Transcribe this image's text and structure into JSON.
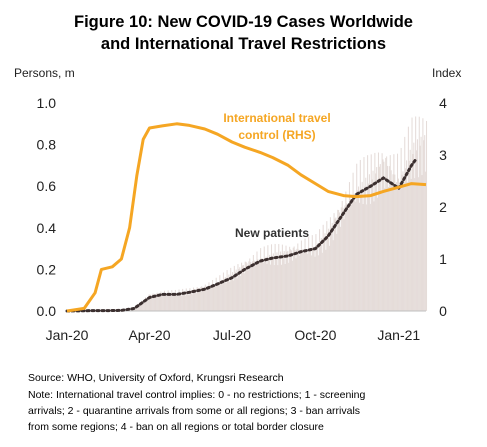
{
  "title_line1": "Figure 10: New COVID-19 Cases Worldwide",
  "title_line2": "and International Travel Restrictions",
  "source": "Source: WHO, University of Oxford, Krungsri Research",
  "note_lines": [
    "Note: International travel control implies: 0 - no restrictions; 1 - screening",
    "arrivals; 2 - quarantine arrivals from some or all regions; 3 - ban arrivals",
    "from some regions; 4 - ban on all regions or total border closure"
  ],
  "chart_data": {
    "type": "line",
    "ylabel": "Persons, m",
    "y2label": "Index",
    "ylim": [
      0,
      1.0
    ],
    "y2lim": [
      0,
      4
    ],
    "yticks": [
      "0.0",
      "0.2",
      "0.4",
      "0.6",
      "0.8",
      "1.0"
    ],
    "y2ticks": [
      "0",
      "1",
      "2",
      "3",
      "4"
    ],
    "xlim": [
      "2020-01-01",
      "2021-01-31"
    ],
    "xticks": [
      {
        "label": "Jan-20",
        "date": "2020-01-01"
      },
      {
        "label": "Apr-20",
        "date": "2020-04-01"
      },
      {
        "label": "Jul-20",
        "date": "2020-07-01"
      },
      {
        "label": "Oct-20",
        "date": "2020-10-01"
      },
      {
        "label": "Jan-21",
        "date": "2021-01-01"
      }
    ],
    "grid": false,
    "series": [
      {
        "name": "New patients",
        "axis": "left",
        "style": "daily bars",
        "color": "#e5dcd9",
        "points": [
          [
            "2020-01-01",
            0.0
          ],
          [
            "2020-02-01",
            0.002
          ],
          [
            "2020-02-15",
            0.003
          ],
          [
            "2020-03-01",
            0.003
          ],
          [
            "2020-03-15",
            0.015
          ],
          [
            "2020-04-01",
            0.075
          ],
          [
            "2020-04-15",
            0.085
          ],
          [
            "2020-05-01",
            0.085
          ],
          [
            "2020-05-15",
            0.095
          ],
          [
            "2020-06-01",
            0.115
          ],
          [
            "2020-06-15",
            0.14
          ],
          [
            "2020-07-01",
            0.18
          ],
          [
            "2020-07-15",
            0.22
          ],
          [
            "2020-08-01",
            0.26
          ],
          [
            "2020-08-15",
            0.27
          ],
          [
            "2020-09-01",
            0.28
          ],
          [
            "2020-09-15",
            0.3
          ],
          [
            "2020-10-01",
            0.31
          ],
          [
            "2020-10-15",
            0.38
          ],
          [
            "2020-11-01",
            0.5
          ],
          [
            "2020-11-15",
            0.6
          ],
          [
            "2020-12-01",
            0.64
          ],
          [
            "2020-12-15",
            0.7
          ],
          [
            "2021-01-01",
            0.65
          ],
          [
            "2021-01-15",
            0.78
          ],
          [
            "2021-01-31",
            0.82
          ]
        ]
      },
      {
        "name": "New patients",
        "axis": "left",
        "style": "dotted moving average",
        "color": "#3b2f2f",
        "points": [
          [
            "2020-01-01",
            0.0
          ],
          [
            "2020-02-01",
            0.002
          ],
          [
            "2020-02-15",
            0.002
          ],
          [
            "2020-03-01",
            0.003
          ],
          [
            "2020-03-15",
            0.012
          ],
          [
            "2020-04-01",
            0.065
          ],
          [
            "2020-04-15",
            0.08
          ],
          [
            "2020-05-01",
            0.08
          ],
          [
            "2020-05-15",
            0.09
          ],
          [
            "2020-06-01",
            0.105
          ],
          [
            "2020-06-15",
            0.13
          ],
          [
            "2020-07-01",
            0.16
          ],
          [
            "2020-07-15",
            0.2
          ],
          [
            "2020-08-01",
            0.24
          ],
          [
            "2020-08-15",
            0.255
          ],
          [
            "2020-09-01",
            0.265
          ],
          [
            "2020-09-15",
            0.285
          ],
          [
            "2020-10-01",
            0.3
          ],
          [
            "2020-10-15",
            0.36
          ],
          [
            "2020-11-01",
            0.47
          ],
          [
            "2020-11-15",
            0.56
          ],
          [
            "2020-12-01",
            0.6
          ],
          [
            "2020-12-15",
            0.64
          ],
          [
            "2021-01-01",
            0.59
          ],
          [
            "2021-01-15",
            0.7
          ],
          [
            "2021-01-20",
            0.73
          ]
        ]
      },
      {
        "name": "International travel control (RHS)",
        "axis": "right",
        "style": "line",
        "color": "#f5a623",
        "points": [
          [
            "2020-01-01",
            0.0
          ],
          [
            "2020-01-20",
            0.05
          ],
          [
            "2020-02-01",
            0.35
          ],
          [
            "2020-02-08",
            0.8
          ],
          [
            "2020-02-20",
            0.85
          ],
          [
            "2020-03-01",
            1.0
          ],
          [
            "2020-03-10",
            1.6
          ],
          [
            "2020-03-18",
            2.6
          ],
          [
            "2020-03-25",
            3.3
          ],
          [
            "2020-04-01",
            3.52
          ],
          [
            "2020-04-15",
            3.56
          ],
          [
            "2020-05-01",
            3.6
          ],
          [
            "2020-05-15",
            3.57
          ],
          [
            "2020-06-01",
            3.5
          ],
          [
            "2020-06-15",
            3.4
          ],
          [
            "2020-07-01",
            3.25
          ],
          [
            "2020-07-15",
            3.15
          ],
          [
            "2020-08-01",
            3.05
          ],
          [
            "2020-08-15",
            2.95
          ],
          [
            "2020-09-01",
            2.8
          ],
          [
            "2020-09-15",
            2.62
          ],
          [
            "2020-10-01",
            2.45
          ],
          [
            "2020-10-15",
            2.3
          ],
          [
            "2020-11-01",
            2.22
          ],
          [
            "2020-11-15",
            2.2
          ],
          [
            "2020-12-01",
            2.22
          ],
          [
            "2020-12-15",
            2.3
          ],
          [
            "2021-01-01",
            2.38
          ],
          [
            "2021-01-15",
            2.45
          ],
          [
            "2021-01-31",
            2.43
          ]
        ]
      }
    ],
    "annotations": [
      {
        "text_lines": [
          "International travel",
          "control (RHS)"
        ],
        "color": "#f5a623",
        "series": "International travel control (RHS)"
      },
      {
        "text_lines": [
          "New patients"
        ],
        "color": "#333333",
        "series": "New patients"
      }
    ]
  }
}
